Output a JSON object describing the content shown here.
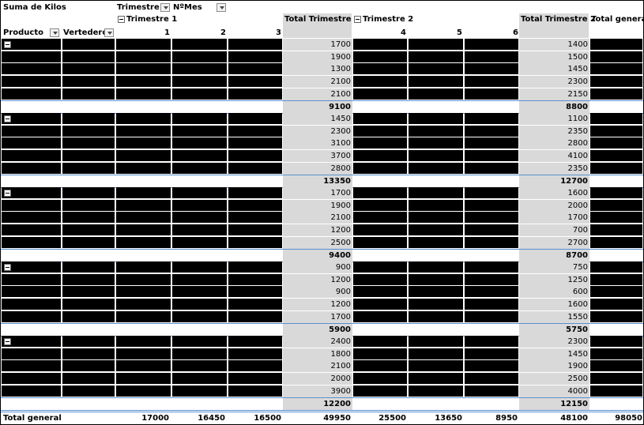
{
  "header": {
    "value_field": "Suma de Kilos",
    "col_field_1": "Trimestre",
    "col_field_2": "NºMes",
    "row_field_1": "Producto",
    "row_field_2": "Vertedero",
    "quarter1": "Trimestre 1",
    "quarter2": "Trimestre 2",
    "total_q1": "Total Trimestre 1",
    "total_q2": "Total Trimestre 2",
    "total_general": "Total general",
    "months": [
      "1",
      "2",
      "3",
      "4",
      "5",
      "6"
    ]
  },
  "groups": [
    {
      "rows": [
        {
          "q1": "1700",
          "q2": "1400"
        },
        {
          "q1": "1900",
          "q2": "1500"
        },
        {
          "q1": "1300",
          "q2": "1450"
        },
        {
          "q1": "2100",
          "q2": "2300"
        },
        {
          "q1": "2100",
          "q2": "2150"
        }
      ],
      "subtotal": {
        "q1": "9100",
        "q2": "8800"
      }
    },
    {
      "rows": [
        {
          "q1": "1450",
          "q2": "1100"
        },
        {
          "q1": "2300",
          "q2": "2350"
        },
        {
          "q1": "3100",
          "q2": "2800"
        },
        {
          "q1": "3700",
          "q2": "4100"
        },
        {
          "q1": "2800",
          "q2": "2350"
        }
      ],
      "subtotal": {
        "q1": "13350",
        "q2": "12700"
      }
    },
    {
      "rows": [
        {
          "q1": "1700",
          "q2": "1600"
        },
        {
          "q1": "1900",
          "q2": "2000"
        },
        {
          "q1": "2100",
          "q2": "1700"
        },
        {
          "q1": "1200",
          "q2": "700"
        },
        {
          "q1": "2500",
          "q2": "2700"
        }
      ],
      "subtotal": {
        "q1": "9400",
        "q2": "8700"
      }
    },
    {
      "rows": [
        {
          "q1": "900",
          "q2": "750"
        },
        {
          "q1": "1200",
          "q2": "1250"
        },
        {
          "q1": "900",
          "q2": "600"
        },
        {
          "q1": "1200",
          "q2": "1600"
        },
        {
          "q1": "1700",
          "q2": "1550"
        }
      ],
      "subtotal": {
        "q1": "5900",
        "q2": "5750"
      }
    },
    {
      "rows": [
        {
          "q1": "2400",
          "q2": "2300"
        },
        {
          "q1": "1800",
          "q2": "1450"
        },
        {
          "q1": "2100",
          "q2": "1900"
        },
        {
          "q1": "2000",
          "q2": "2500"
        },
        {
          "q1": "3900",
          "q2": "4000"
        }
      ],
      "subtotal": {
        "q1": "12200",
        "q2": "12150"
      }
    }
  ],
  "grand_total": {
    "label": "Total general",
    "values": [
      "17000",
      "16450",
      "16500",
      "49950",
      "25500",
      "13650",
      "8950",
      "48100",
      "98050"
    ]
  },
  "colors": {
    "redacted": "#000000",
    "total_column": "#d9d9d9",
    "separator": "#5b8fd0"
  }
}
